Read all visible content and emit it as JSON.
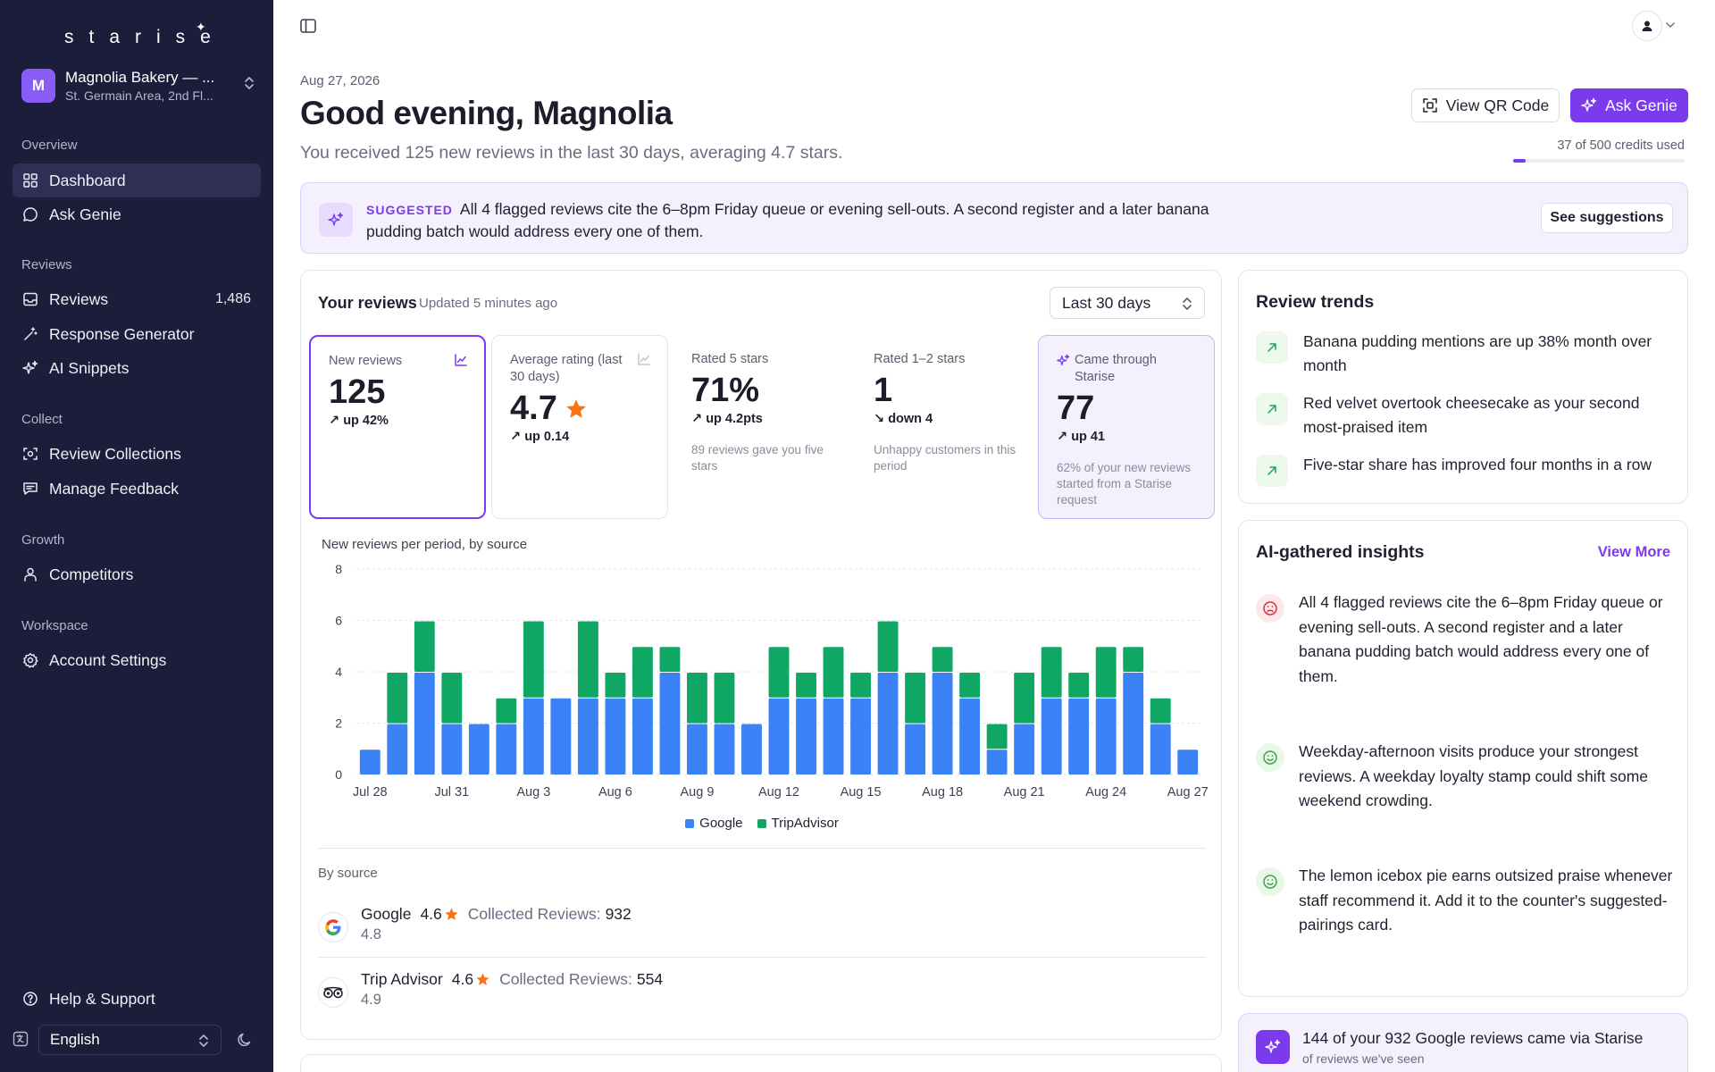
{
  "brand": {
    "logo": "starise",
    "accent": "#7c3aed",
    "sidebar_bg": "#1c1c3b"
  },
  "org": {
    "initial": "M",
    "name": "Magnolia Bakery — ...",
    "location": "St. Germain Area, 2nd Fl..."
  },
  "nav": {
    "overview_label": "Overview",
    "dashboard": "Dashboard",
    "ask_genie": "Ask Genie",
    "reviews_label": "Reviews",
    "reviews": "Reviews",
    "reviews_count": "1,486",
    "response_generator": "Response Generator",
    "ai_snippets": "AI Snippets",
    "collect_label": "Collect",
    "review_collections": "Review Collections",
    "manage_feedback": "Manage Feedback",
    "growth_label": "Growth",
    "competitors": "Competitors",
    "workspace_label": "Workspace",
    "account_settings": "Account Settings",
    "help": "Help & Support",
    "language": "English"
  },
  "header": {
    "date": "Aug 27, 2026",
    "greeting": "Good evening, Magnolia",
    "summary": "You received 125 new reviews in the last 30 days, averaging 4.7 stars.",
    "qr_button": "View QR Code",
    "genie_button": "Ask Genie",
    "credits_text": "37 of 500 credits used",
    "credits_used": 37,
    "credits_total": 500
  },
  "banner": {
    "tag": "SUGGESTED",
    "text": "All 4 flagged reviews cite the 6–8pm Friday queue or evening sell-outs. A second register and a later banana pudding batch would address every one of them.",
    "button": "See suggestions"
  },
  "reviews_card": {
    "title": "Your reviews",
    "updated": "Updated 5 minutes ago",
    "range": "Last 30 days",
    "stats": [
      {
        "label": "New reviews",
        "value": "125",
        "change": "up 42%",
        "direction": "up",
        "note": ""
      },
      {
        "label": "Average rating (last 30 days)",
        "value": "4.7",
        "change": "up 0.14",
        "direction": "up",
        "note": ""
      },
      {
        "label": "Rated 5 stars",
        "value": "71%",
        "change": "up 4.2pts",
        "direction": "up",
        "note": "89 reviews gave you five stars"
      },
      {
        "label": "Rated 1–2 stars",
        "value": "1",
        "change": "down 4",
        "direction": "down",
        "note": "Unhappy customers in this period"
      },
      {
        "label": "Came through Starise",
        "value": "77",
        "change": "up 41",
        "direction": "up",
        "note": "62% of your new reviews started from a Starise request"
      }
    ],
    "chart_title": "New reviews per period, by source",
    "by_source_label": "By source",
    "sources": [
      {
        "name": "Google",
        "rating": "4.6",
        "collected_label": "Collected Reviews:",
        "collected": "932",
        "sub": "4.8"
      },
      {
        "name": "Trip Advisor",
        "rating": "4.6",
        "collected_label": "Collected Reviews:",
        "collected": "554",
        "sub": "4.9"
      }
    ]
  },
  "chart_data": {
    "type": "bar",
    "stacked": true,
    "title": "New reviews per period, by source",
    "categories": [
      "Jul 28",
      "Jul 29",
      "Jul 30",
      "Jul 31",
      "Aug 1",
      "Aug 2",
      "Aug 3",
      "Aug 4",
      "Aug 5",
      "Aug 6",
      "Aug 7",
      "Aug 8",
      "Aug 9",
      "Aug 10",
      "Aug 11",
      "Aug 12",
      "Aug 13",
      "Aug 14",
      "Aug 15",
      "Aug 16",
      "Aug 17",
      "Aug 18",
      "Aug 19",
      "Aug 20",
      "Aug 21",
      "Aug 22",
      "Aug 23",
      "Aug 24",
      "Aug 25",
      "Aug 26",
      "Aug 27"
    ],
    "x_tick_labels": [
      "Jul 28",
      "Jul 31",
      "Aug 3",
      "Aug 6",
      "Aug 9",
      "Aug 12",
      "Aug 15",
      "Aug 18",
      "Aug 21",
      "Aug 24",
      "Aug 27"
    ],
    "series": [
      {
        "name": "Google",
        "color": "#3b82f6",
        "values": [
          1,
          2,
          4,
          2,
          2,
          2,
          3,
          3,
          3,
          3,
          3,
          4,
          2,
          2,
          2,
          3,
          3,
          3,
          3,
          4,
          2,
          4,
          3,
          1,
          2,
          3,
          3,
          3,
          4,
          2,
          1
        ]
      },
      {
        "name": "TripAdvisor",
        "color": "#10a765",
        "values": [
          0,
          2,
          2,
          2,
          0,
          1,
          3,
          0,
          3,
          1,
          2,
          1,
          2,
          2,
          0,
          2,
          1,
          2,
          1,
          2,
          2,
          1,
          1,
          1,
          2,
          2,
          1,
          2,
          1,
          1,
          0
        ]
      }
    ],
    "ylim": [
      0,
      8
    ],
    "yticks": [
      0,
      2,
      4,
      6,
      8
    ],
    "grid": true,
    "legend": "bottom"
  },
  "trends": {
    "title": "Review trends",
    "items": [
      "Banana pudding mentions are up 38% month over month",
      "Red velvet overtook cheesecake as your second most-praised item",
      "Five-star share has improved four months in a row"
    ]
  },
  "insights": {
    "title": "AI-gathered insights",
    "view_more": "View More",
    "items": [
      {
        "sentiment": "negative",
        "text": "All 4 flagged reviews cite the 6–8pm Friday queue or evening sell-outs. A second register and a later banana pudding batch would address every one of them."
      },
      {
        "sentiment": "positive",
        "text": "Weekday-afternoon visits produce your strongest reviews. A weekday loyalty stamp could shift some weekend crowding."
      },
      {
        "sentiment": "positive",
        "text": "The lemon icebox pie earns outsized praise whenever staff recommend it. Add it to the counter's suggested-pairings card."
      }
    ]
  },
  "promo": {
    "title": "144 of your 932 Google reviews came via Starise",
    "sub": "of reviews we've seen"
  }
}
